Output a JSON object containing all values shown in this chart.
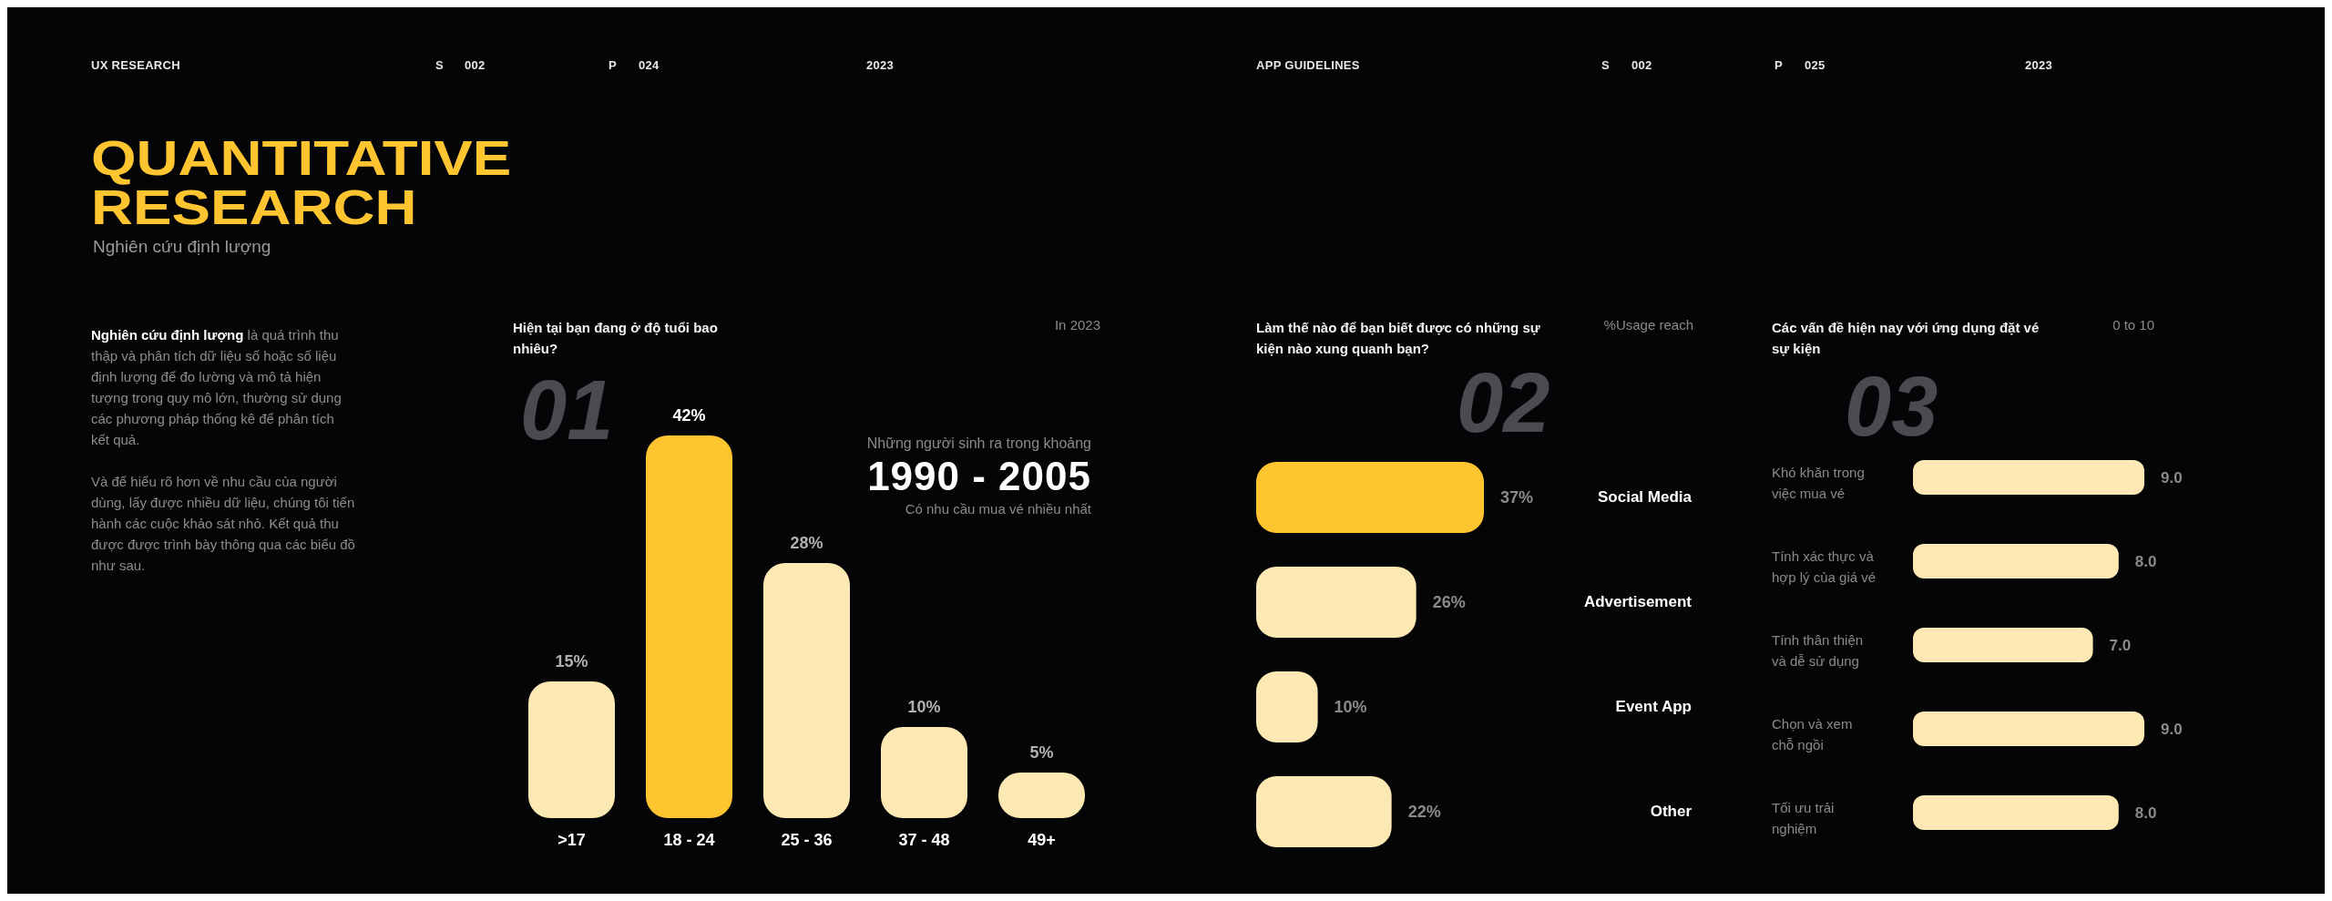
{
  "chart_data": [
    {
      "type": "other",
      "title": "QUANTITATIVE RESEARCH",
      "subtitle": "Nghiên cứu định lượng",
      "annotations": [
        "UX RESEARCH",
        "S",
        "002",
        "P",
        "024",
        "2023",
        "APP GUIDELINES",
        "S",
        "002",
        "P",
        "025",
        "2023",
        "Nghiên cứu định lượng",
        "là quá trình thu thập và phân tích dữ liệu số hoặc số liệu định lượng để đo lường và mô tả hiện tượng trong quy mô lớn, thường sử dụng các phương pháp thống kê để phân tích kết quả.",
        "Và để hiểu rõ hơn về nhu cầu của người dùng, lấy được nhiều dữ liệu, chúng tôi tiến hành các cuộc khảo sát nhỏ. Kết quả thu được được trình bày thông qua các biểu đồ như sau."
      ]
    },
    {
      "type": "bar",
      "title": "Hiện tại bạn đang ở độ tuổi bao nhiêu?",
      "subtitle": "In 2023",
      "categories": [
        ">17",
        "18 - 24",
        "25 - 36",
        "37 - 48",
        "49+"
      ],
      "values": [
        15,
        42,
        28,
        10,
        5
      ],
      "value_labels": [
        "15%",
        "42%",
        "28%",
        "10%",
        "5%"
      ],
      "colors": [
        "#fce8b2",
        "#ffc531",
        "#fce8b2",
        "#fce8b2",
        "#fce8b2"
      ],
      "annotations": [
        "01",
        "Những người sinh ra trong khoảng",
        "1990 - 2005",
        "Có nhu cầu mua vé nhiều nhất"
      ]
    },
    {
      "type": "bar",
      "orientation": "horizontal",
      "title": "Làm thế nào để bạn biết được có những sự kiện nào xung quanh bạn?",
      "subtitle": "%Usage reach",
      "categories": [
        "Social Media",
        "Advertisement",
        "Event App",
        "Other"
      ],
      "values": [
        37,
        26,
        10,
        22
      ],
      "value_labels": [
        "37%",
        "26%",
        "10%",
        "22%"
      ],
      "colors": [
        "#ffc531",
        "#fce8b2",
        "#fce8b2",
        "#fce8b2"
      ],
      "annotations": [
        "02"
      ]
    },
    {
      "type": "bar",
      "orientation": "horizontal",
      "title": "Các vấn đề hiện nay với ứng dụng đặt vé sự kiện",
      "subtitle": "0 to 10",
      "categories": [
        "Khó khăn trong việc mua vé",
        "Tính xác thực và hợp lý của giá vé",
        "Tính thân thiện và dễ sử dụng",
        "Chọn và xem chỗ ngồi",
        "Tối ưu trải nghiệm"
      ],
      "values": [
        9,
        8,
        7,
        9,
        8
      ],
      "value_labels": [
        "9.0",
        "8.0",
        "7.0",
        "9.0",
        "8.0"
      ],
      "color": "#fce8b2",
      "annotations": [
        "03"
      ]
    }
  ]
}
